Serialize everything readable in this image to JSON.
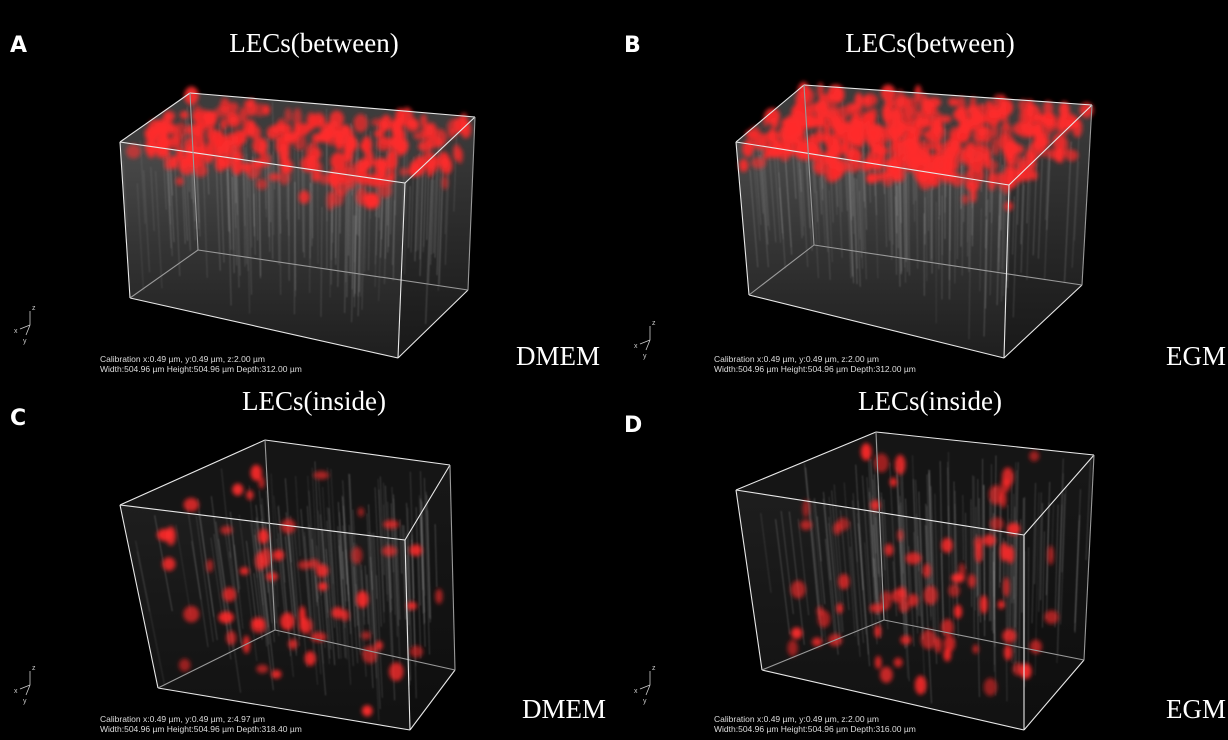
{
  "axis_labels": [
    "z",
    "x",
    "y"
  ],
  "panels": [
    {
      "letter": "A",
      "title": "LECs(between)",
      "medium": "DMEM",
      "calibration": [
        "Calibration x:0.49 µm, y:0.49 µm, z:2.00 µm",
        "Width:504.96 µm Height:504.96 µm Depth:312.00 µm"
      ]
    },
    {
      "letter": "B",
      "title": "LECs(between)",
      "medium": "EGM",
      "calibration": [
        "Calibration x:0.49 µm, y:0.49 µm, z:2.00 µm",
        "Width:504.96 µm Height:504.96 µm Depth:312.00 µm"
      ]
    },
    {
      "letter": "C",
      "title": "LECs(inside)",
      "medium": "DMEM",
      "calibration": [
        "Calibration x:0.49 µm, y:0.49 µm, z:4.97 µm",
        "Width:504.96 µm Height:504.96 µm Depth:318.40 µm"
      ]
    },
    {
      "letter": "D",
      "title": "LECs(inside)",
      "medium": "EGM",
      "calibration": [
        "Calibration x:0.49 µm, y:0.49 µm, z:2.00 µm",
        "Width:504.96 µm Height:504.96 µm Depth:316.00 µm"
      ]
    }
  ]
}
